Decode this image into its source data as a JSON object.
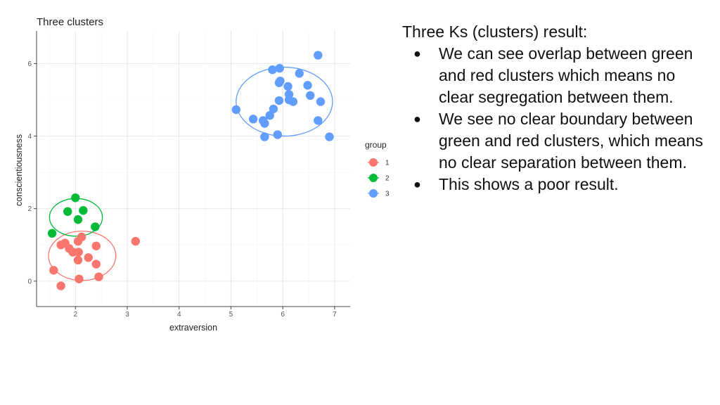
{
  "chart_data": {
    "type": "scatter",
    "title": "Three clusters",
    "xlabel": "extraversion",
    "ylabel": "conscientiousness",
    "xlim": [
      1.25,
      7.3
    ],
    "ylim": [
      -0.7,
      6.9
    ],
    "xticks": [
      2,
      3,
      4,
      5,
      6,
      7
    ],
    "yticks": [
      0,
      2,
      4,
      6
    ],
    "grid": true,
    "legend": {
      "title": "group",
      "position": "right"
    },
    "series": [
      {
        "name": "1",
        "color": "#F8766D",
        "points": [
          [
            1.72,
            1.0
          ],
          [
            1.8,
            1.05
          ],
          [
            1.88,
            0.9
          ],
          [
            1.95,
            0.8
          ],
          [
            2.05,
            1.1
          ],
          [
            2.12,
            1.22
          ],
          [
            2.06,
            0.8
          ],
          [
            2.4,
            0.97
          ],
          [
            2.05,
            0.58
          ],
          [
            2.25,
            0.65
          ],
          [
            2.4,
            0.47
          ],
          [
            1.58,
            0.3
          ],
          [
            2.45,
            0.12
          ],
          [
            2.07,
            0.06
          ],
          [
            1.72,
            -0.13
          ],
          [
            3.16,
            1.1
          ]
        ],
        "ellipse": {
          "cx": 2.13,
          "cy": 0.7,
          "rx": 0.65,
          "ry": 0.68
        }
      },
      {
        "name": "2",
        "color": "#00BA38",
        "points": [
          [
            2.0,
            2.3
          ],
          [
            1.85,
            1.92
          ],
          [
            2.15,
            1.95
          ],
          [
            2.05,
            1.7
          ],
          [
            2.38,
            1.5
          ],
          [
            1.55,
            1.32
          ]
        ],
        "ellipse": {
          "cx": 2.01,
          "cy": 1.76,
          "rx": 0.51,
          "ry": 0.52
        }
      },
      {
        "name": "3",
        "color": "#619CFF",
        "points": [
          [
            6.68,
            6.23
          ],
          [
            5.94,
            5.87
          ],
          [
            5.8,
            5.83
          ],
          [
            6.32,
            5.73
          ],
          [
            5.95,
            5.52
          ],
          [
            5.93,
            5.47
          ],
          [
            6.1,
            5.37
          ],
          [
            6.48,
            5.4
          ],
          [
            6.12,
            5.15
          ],
          [
            6.53,
            5.12
          ],
          [
            6.12,
            5.0
          ],
          [
            5.93,
            4.98
          ],
          [
            6.2,
            4.95
          ],
          [
            6.73,
            4.95
          ],
          [
            5.1,
            4.73
          ],
          [
            5.82,
            4.75
          ],
          [
            5.75,
            4.57
          ],
          [
            5.43,
            4.47
          ],
          [
            5.62,
            4.43
          ],
          [
            6.68,
            4.43
          ],
          [
            5.65,
            4.35
          ],
          [
            5.9,
            4.04
          ],
          [
            5.65,
            3.98
          ],
          [
            6.9,
            3.98
          ]
        ],
        "ellipse": {
          "cx": 6.03,
          "cy": 4.95,
          "rx": 0.93,
          "ry": 0.95
        }
      }
    ]
  },
  "notes": {
    "heading": "Three Ks (clusters) result:",
    "bullets": [
      "We can see overlap between green and red clusters which means no clear segregation between them.",
      "We see no clear boundary between green and red clusters, which means no clear separation between them.",
      "This shows a poor result."
    ],
    "bullet_symbol": "●"
  }
}
